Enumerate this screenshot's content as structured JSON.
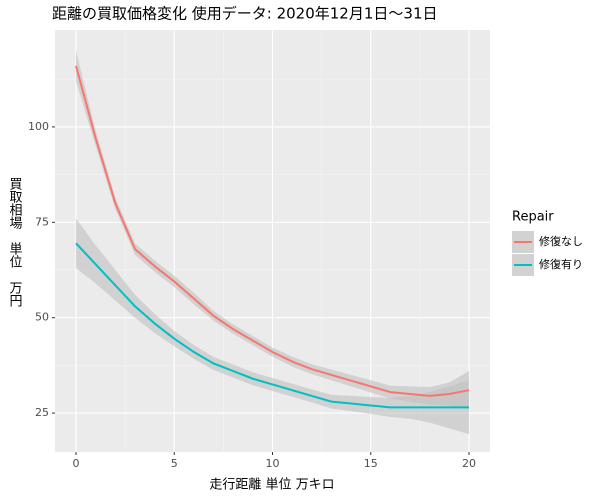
{
  "chart_data": {
    "type": "line",
    "title": "距離の買取価格変化 使用データ: 2020年12月1日～31日",
    "x_label": "走行距離 単位 万キロ",
    "y_label": "買取相場　単位　万円",
    "legend_title": "Repair",
    "legend_position": "right",
    "grid": true,
    "band_color": "#bfbfbf",
    "xlim": [
      -1.07,
      21.07
    ],
    "xticks": [
      0,
      5,
      10,
      15,
      20
    ],
    "ylim": [
      14.8,
      125.4
    ],
    "yticks": [
      25,
      50,
      75,
      100
    ],
    "x": [
      0,
      1,
      2,
      3,
      4,
      5,
      6,
      7,
      8,
      9,
      10,
      11,
      12,
      13,
      14,
      15,
      16,
      17,
      18,
      19,
      20
    ],
    "series": [
      {
        "name": "修復なし",
        "color": "#F8766D",
        "values": [
          116,
          97,
          80,
          68,
          63.5,
          59.5,
          55,
          50.5,
          47,
          44,
          41,
          38.5,
          36.5,
          35,
          33.5,
          32,
          30.5,
          30,
          29.5,
          30,
          31
        ],
        "lower": [
          112,
          95,
          78.5,
          66.5,
          62,
          58,
          53.5,
          49.2,
          45.8,
          42.8,
          39.8,
          37.2,
          35.2,
          33.6,
          32,
          30.4,
          28.8,
          28,
          27.2,
          27,
          26
        ],
        "upper": [
          120,
          99,
          81.5,
          69.5,
          65,
          61,
          56.5,
          51.8,
          48.2,
          45.2,
          42.2,
          39.8,
          37.8,
          36.4,
          35,
          33.6,
          32.2,
          32,
          31.8,
          33,
          36
        ]
      },
      {
        "name": "修復有り",
        "color": "#00BFC4",
        "values": [
          69.5,
          64,
          58.5,
          53,
          48.5,
          44.5,
          41,
          38,
          36,
          34,
          32.5,
          31,
          29.5,
          28,
          27.5,
          27,
          26.5,
          26.5,
          26.5,
          26.5,
          26.5
        ],
        "lower": [
          63,
          59,
          54.5,
          50,
          46,
          42.5,
          39.2,
          36.3,
          34.3,
          32.3,
          30.8,
          29.3,
          27.8,
          26.2,
          25.5,
          24.8,
          24,
          23.5,
          22.5,
          21,
          19.5
        ],
        "upper": [
          76,
          69,
          62.5,
          56,
          51,
          46.5,
          42.8,
          39.7,
          37.7,
          35.7,
          34.2,
          32.7,
          31.2,
          29.8,
          29.5,
          29.2,
          29,
          29.5,
          30.5,
          32,
          33.5
        ]
      }
    ]
  }
}
